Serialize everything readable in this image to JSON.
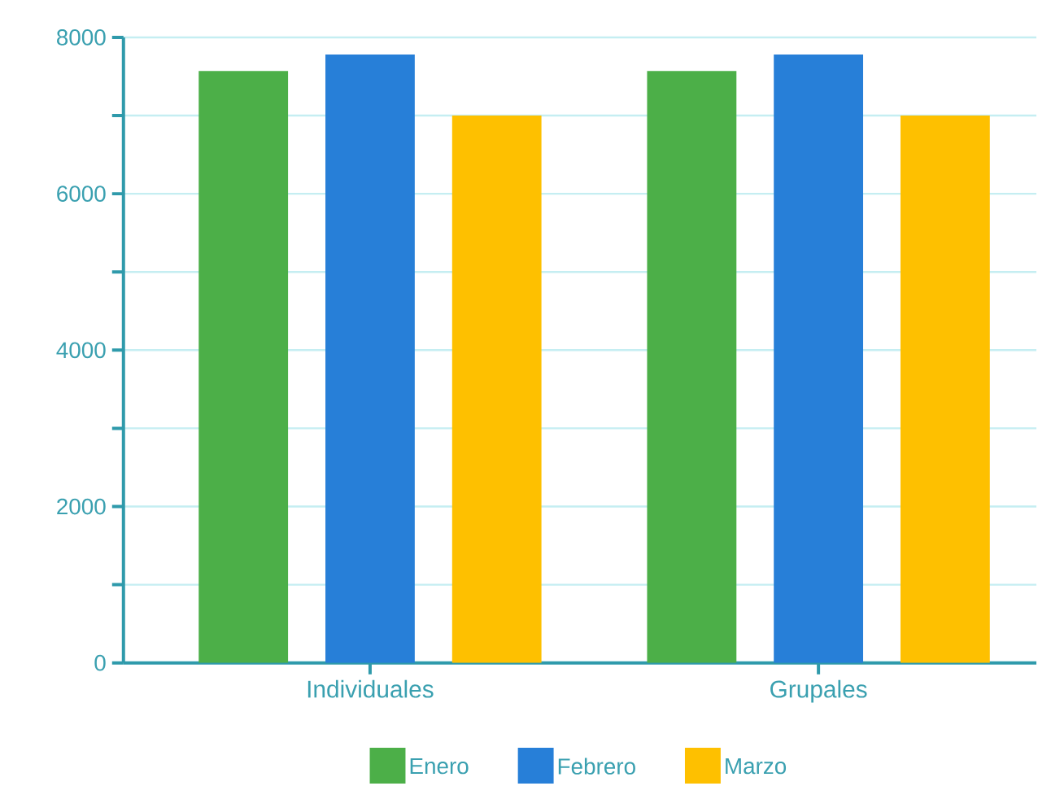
{
  "chart_data": {
    "type": "bar",
    "categories": [
      "Individuales",
      "Grupales"
    ],
    "series": [
      {
        "name": "Enero",
        "color": "#4caf48",
        "values": [
          7570,
          7570
        ]
      },
      {
        "name": "Febrero",
        "color": "#277fd8",
        "values": [
          7780,
          7780
        ]
      },
      {
        "name": "Marzo",
        "color": "#fec000",
        "values": [
          7000,
          7000
        ]
      }
    ],
    "ylim": [
      0,
      8000
    ],
    "yticks": [
      0,
      {
        "value": 1000,
        "label": null
      },
      2000,
      {
        "value": 3000,
        "label": null
      },
      4000,
      {
        "value": 5000,
        "label": null
      },
      6000,
      {
        "value": 7000,
        "label": null
      },
      8000
    ],
    "grid": "y",
    "legend": "bottom"
  }
}
